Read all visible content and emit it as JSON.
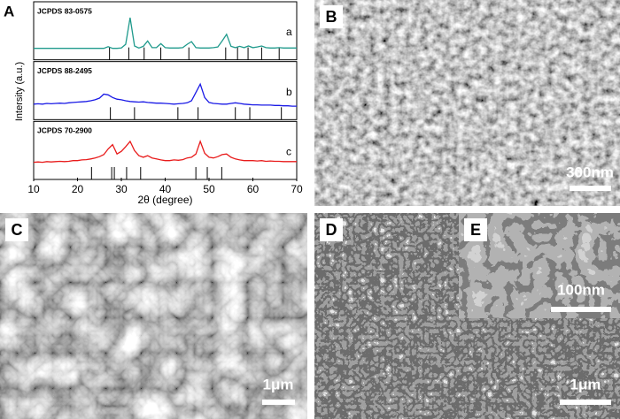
{
  "chart_data": {
    "type": "line",
    "panel": "A",
    "xlabel": "2θ (degree)",
    "ylabel": "Intersity (a.u.)",
    "xlim": [
      10,
      70
    ],
    "xticks": [
      10,
      20,
      30,
      40,
      50,
      60,
      70
    ],
    "ylim": [
      0,
      100
    ],
    "x": [
      10,
      11,
      12,
      13,
      14,
      15,
      16,
      17,
      18,
      19,
      20,
      21,
      22,
      23,
      24,
      25,
      26,
      27,
      28,
      29,
      30,
      31,
      32,
      33,
      34,
      35,
      36,
      37,
      38,
      39,
      40,
      41,
      42,
      43,
      44,
      45,
      46,
      47,
      48,
      49,
      50,
      51,
      52,
      53,
      54,
      55,
      56,
      57,
      58,
      59,
      60,
      61,
      62,
      63,
      64,
      65,
      66,
      67,
      68,
      69,
      70
    ],
    "series": [
      {
        "name": "a",
        "reference": "JCPDS 83-0575",
        "color": "#1f9a8c",
        "reference_positions": [
          27.3,
          31.7,
          35.2,
          39.0,
          45.4,
          53.8,
          56.5,
          58.9,
          62.0,
          66.0
        ],
        "values": [
          8,
          8,
          8,
          8,
          8,
          8,
          8,
          8,
          8,
          8,
          8,
          8,
          8,
          8,
          8,
          8,
          8,
          13,
          8,
          8,
          9,
          20,
          100,
          15,
          9,
          14,
          30,
          10,
          10,
          22,
          10,
          9,
          9,
          9,
          10,
          20,
          28,
          10,
          9,
          9,
          9,
          10,
          12,
          30,
          50,
          14,
          10,
          14,
          10,
          15,
          10,
          12,
          15,
          10,
          9,
          9,
          10,
          9,
          9,
          9,
          9
        ]
      },
      {
        "name": "b",
        "reference": "JCPDS 88-2495",
        "color": "#1a1ae6",
        "reference_positions": [
          27.5,
          33.0,
          42.9,
          47.5,
          56.0,
          59.3,
          66.5
        ],
        "values": [
          20,
          21,
          20,
          22,
          21,
          22,
          23,
          22,
          24,
          25,
          26,
          27,
          28,
          30,
          33,
          38,
          50,
          48,
          40,
          35,
          33,
          30,
          28,
          27,
          26,
          27,
          25,
          24,
          23,
          23,
          22,
          21,
          20,
          21,
          22,
          24,
          30,
          55,
          80,
          40,
          25,
          22,
          21,
          20,
          20,
          22,
          24,
          22,
          20,
          19,
          18,
          18,
          17,
          17,
          17,
          16,
          16,
          15,
          15,
          14,
          14
        ]
      },
      {
        "name": "c",
        "reference": "JCPDS 70-2900",
        "color": "#e81a1a",
        "reference_positions": [
          23.2,
          27.8,
          28.4,
          31.2,
          34.4,
          47.0,
          49.6,
          52.9
        ],
        "values": [
          25,
          26,
          25,
          27,
          26,
          27,
          28,
          27,
          28,
          30,
          30,
          32,
          33,
          35,
          38,
          42,
          48,
          65,
          78,
          50,
          58,
          72,
          88,
          60,
          45,
          40,
          45,
          38,
          35,
          32,
          30,
          30,
          32,
          31,
          33,
          38,
          40,
          50,
          88,
          52,
          40,
          38,
          42,
          48,
          50,
          40,
          35,
          32,
          30,
          30,
          30,
          29,
          30,
          28,
          29,
          28,
          28,
          27,
          27,
          27,
          27
        ]
      }
    ]
  },
  "panels": [
    {
      "label": "B",
      "scale_bar": "300nm"
    },
    {
      "label": "C",
      "scale_bar": "1μm"
    },
    {
      "label": "D",
      "scale_bar": "1μm"
    },
    {
      "label": "E",
      "scale_bar": "100nm"
    }
  ]
}
